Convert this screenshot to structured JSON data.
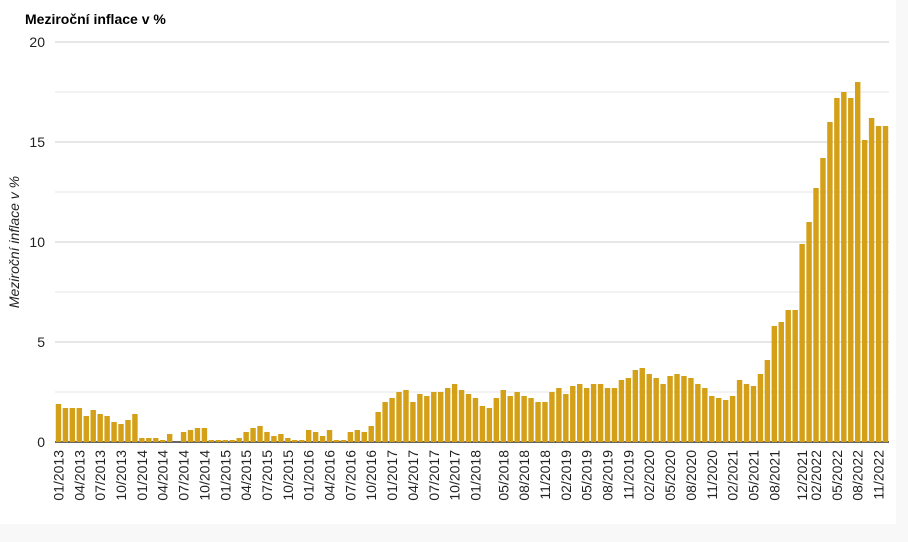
{
  "chart_data": {
    "type": "bar",
    "title": "Meziroční inflace v %",
    "ylabel": "Meziroční inflace v %",
    "xlabel": "",
    "ylim": [
      0,
      20
    ],
    "yticks": [
      0,
      5,
      10,
      15,
      20
    ],
    "grid": true,
    "bar_color": "#d4a017",
    "grid_color": "#cccccc",
    "categories": [
      "01/2013",
      "02/2013",
      "03/2013",
      "04/2013",
      "05/2013",
      "06/2013",
      "07/2013",
      "08/2013",
      "09/2013",
      "10/2013",
      "11/2013",
      "12/2013",
      "01/2014",
      "02/2014",
      "03/2014",
      "04/2014",
      "05/2014",
      "06/2014",
      "07/2014",
      "08/2014",
      "09/2014",
      "10/2014",
      "11/2014",
      "12/2014",
      "01/2015",
      "02/2015",
      "03/2015",
      "04/2015",
      "05/2015",
      "06/2015",
      "07/2015",
      "08/2015",
      "09/2015",
      "10/2015",
      "11/2015",
      "12/2015",
      "01/2016",
      "02/2016",
      "03/2016",
      "04/2016",
      "05/2016",
      "06/2016",
      "07/2016",
      "08/2016",
      "09/2016",
      "10/2016",
      "11/2016",
      "12/2016",
      "01/2017",
      "02/2017",
      "03/2017",
      "04/2017",
      "05/2017",
      "06/2017",
      "07/2017",
      "08/2017",
      "09/2017",
      "10/2017",
      "11/2017",
      "12/2017",
      "01/2018",
      "02/2018",
      "03/2018",
      "04/2018",
      "05/2018",
      "06/2018",
      "07/2018",
      "08/2018",
      "09/2018",
      "10/2018",
      "11/2018",
      "12/2018",
      "01/2019",
      "02/2019",
      "03/2019",
      "04/2019",
      "05/2019",
      "06/2019",
      "07/2019",
      "08/2019",
      "09/2019",
      "10/2019",
      "11/2019",
      "12/2019",
      "01/2020",
      "02/2020",
      "03/2020",
      "04/2020",
      "05/2020",
      "06/2020",
      "07/2020",
      "08/2020",
      "09/2020",
      "10/2020",
      "11/2020",
      "12/2020",
      "01/2021",
      "02/2021",
      "03/2021",
      "04/2021",
      "05/2021",
      "06/2021",
      "07/2021",
      "08/2021",
      "09/2021",
      "10/2021",
      "11/2021",
      "12/2021",
      "01/2022",
      "02/2022",
      "03/2022",
      "04/2022",
      "05/2022",
      "06/2022",
      "07/2022",
      "08/2022",
      "09/2022",
      "10/2022",
      "11/2022",
      "12/2022"
    ],
    "xtick_labels": [
      "01/2013",
      "04/2013",
      "07/2013",
      "10/2013",
      "01/2014",
      "04/2014",
      "07/2014",
      "10/2014",
      "01/2015",
      "04/2015",
      "07/2015",
      "10/2015",
      "01/2016",
      "04/2016",
      "07/2016",
      "10/2016",
      "01/2017",
      "04/2017",
      "07/2017",
      "10/2017",
      "01/2018",
      "05/2018",
      "08/2018",
      "11/2018",
      "02/2019",
      "05/2019",
      "08/2019",
      "11/2019",
      "02/2020",
      "05/2020",
      "08/2020",
      "11/2020",
      "02/2021",
      "05/2021",
      "08/2021",
      "12/2021",
      "02/2022",
      "05/2022",
      "08/2022",
      "11/2022"
    ],
    "values": [
      1.9,
      1.7,
      1.7,
      1.7,
      1.3,
      1.6,
      1.4,
      1.3,
      1.0,
      0.9,
      1.1,
      1.4,
      0.2,
      0.2,
      0.2,
      0.1,
      0.4,
      0.0,
      0.5,
      0.6,
      0.7,
      0.7,
      0.1,
      0.1,
      0.1,
      0.1,
      0.2,
      0.5,
      0.7,
      0.8,
      0.5,
      0.3,
      0.4,
      0.2,
      0.1,
      0.1,
      0.6,
      0.5,
      0.3,
      0.6,
      0.1,
      0.1,
      0.5,
      0.6,
      0.5,
      0.8,
      1.5,
      2.0,
      2.2,
      2.5,
      2.6,
      2.0,
      2.4,
      2.3,
      2.5,
      2.5,
      2.7,
      2.9,
      2.6,
      2.4,
      2.2,
      1.8,
      1.7,
      2.2,
      2.6,
      2.3,
      2.5,
      2.3,
      2.2,
      2.0,
      2.0,
      2.5,
      2.7,
      2.4,
      2.8,
      2.9,
      2.7,
      2.9,
      2.9,
      2.7,
      2.7,
      3.1,
      3.2,
      3.6,
      3.7,
      3.4,
      3.2,
      2.9,
      3.3,
      3.4,
      3.3,
      3.2,
      2.9,
      2.7,
      2.3,
      2.2,
      2.1,
      2.3,
      3.1,
      2.9,
      2.8,
      3.4,
      4.1,
      5.8,
      6.0,
      6.6,
      6.6,
      9.9,
      11.0,
      12.7,
      14.2,
      16.0,
      17.2,
      17.5,
      17.2,
      18.0,
      15.1,
      16.2,
      15.8,
      15.8
    ]
  }
}
